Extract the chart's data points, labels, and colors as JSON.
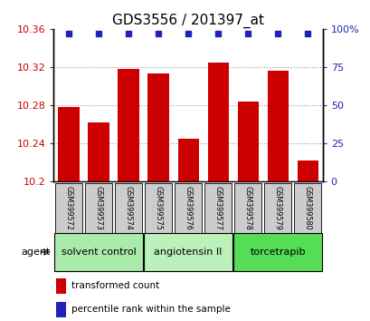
{
  "title": "GDS3556 / 201397_at",
  "categories": [
    "GSM399572",
    "GSM399573",
    "GSM399574",
    "GSM399575",
    "GSM399576",
    "GSM399577",
    "GSM399578",
    "GSM399579",
    "GSM399580"
  ],
  "bar_values": [
    10.278,
    10.262,
    10.318,
    10.313,
    10.245,
    10.325,
    10.284,
    10.316,
    10.222
  ],
  "bar_bottom": 10.2,
  "ylim_left": [
    10.2,
    10.36
  ],
  "ylim_right": [
    0,
    100
  ],
  "yticks_left": [
    10.2,
    10.24,
    10.28,
    10.32,
    10.36
  ],
  "yticks_right": [
    0,
    25,
    50,
    75,
    100
  ],
  "ytick_labels_right": [
    "0",
    "25",
    "50",
    "75",
    "100%"
  ],
  "bar_color": "#cc0000",
  "dot_color": "#2222bb",
  "groups": [
    {
      "label": "solvent control",
      "indices": [
        0,
        1,
        2
      ],
      "color": "#aaeaaa"
    },
    {
      "label": "angiotensin II",
      "indices": [
        3,
        4,
        5
      ],
      "color": "#bbf0bb"
    },
    {
      "label": "torcetrapib",
      "indices": [
        6,
        7,
        8
      ],
      "color": "#55dd55"
    }
  ],
  "agent_label": "agent",
  "legend_items": [
    {
      "color": "#cc0000",
      "label": "transformed count"
    },
    {
      "color": "#2222bb",
      "label": "percentile rank within the sample"
    }
  ],
  "grid_color": "#999999",
  "tick_label_color_left": "#cc0000",
  "tick_label_color_right": "#2222bb",
  "bar_width": 0.7,
  "dot_pct": 97,
  "xlabel_area_color": "#cccccc",
  "plot_bg_color": "#ffffff",
  "figure_bg_color": "#ffffff",
  "title_fontsize": 11
}
